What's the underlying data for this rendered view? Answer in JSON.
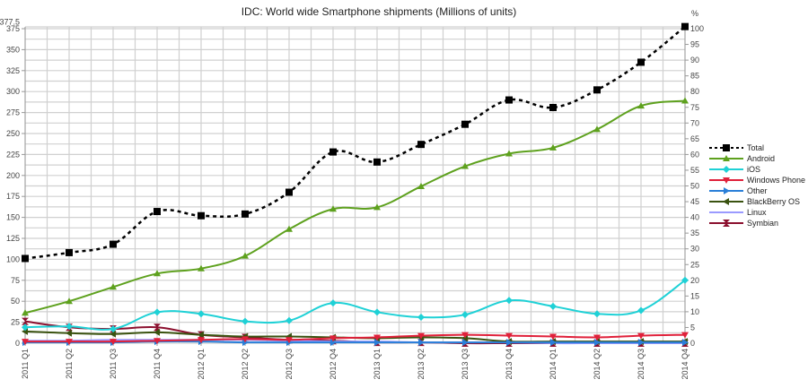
{
  "chart_data": {
    "type": "line",
    "title": "IDC: World wide Smartphone shipments (Millions of units)",
    "xlabel": "",
    "ylabel": "",
    "y2label": "%",
    "categories": [
      "2011 Q1",
      "2011 Q2",
      "2011 Q3",
      "2011 Q4",
      "2012 Q1",
      "2012 Q2",
      "2012 Q3",
      "2012 Q4",
      "2013 Q1",
      "2013 Q2",
      "2013 Q3",
      "2013 Q4",
      "2014 Q1",
      "2014 Q2",
      "2014 Q3",
      "2014 Q4"
    ],
    "ylim": [
      0,
      377.5
    ],
    "y_ticks": [
      0,
      25,
      50,
      75,
      100,
      125,
      150,
      175,
      200,
      225,
      250,
      275,
      300,
      325,
      350,
      375,
      377.5
    ],
    "y2lim": [
      0,
      100
    ],
    "y2_ticks": [
      0,
      5,
      10,
      15,
      20,
      25,
      30,
      35,
      40,
      45,
      50,
      55,
      60,
      65,
      70,
      75,
      80,
      85,
      90,
      95,
      100
    ],
    "grid": true,
    "legend_position": "right",
    "series": [
      {
        "name": "Total",
        "color": "#000000",
        "marker": "square",
        "dashed": true,
        "values": [
          101,
          108,
          118,
          157,
          152,
          154,
          180,
          228,
          216,
          237,
          261,
          290,
          281,
          302,
          335,
          377.5
        ]
      },
      {
        "name": "Android",
        "color": "#5ea11e",
        "marker": "triangle-up",
        "dashed": false,
        "values": [
          36,
          50,
          67,
          83,
          89,
          104,
          136,
          160,
          162,
          187,
          211,
          226,
          233,
          255,
          283,
          289
        ]
      },
      {
        "name": "iOS",
        "color": "#1fd1d6",
        "marker": "diamond",
        "dashed": false,
        "values": [
          19,
          20,
          17,
          37,
          35,
          26,
          27,
          48,
          37,
          31,
          34,
          51,
          44,
          35,
          39,
          75
        ]
      },
      {
        "name": "Windows Phone",
        "color": "#e0203a",
        "marker": "triangle-down",
        "dashed": false,
        "values": [
          2,
          2,
          2,
          3,
          4,
          5,
          4,
          6,
          7,
          9,
          10,
          9,
          8,
          7,
          9,
          10
        ]
      },
      {
        "name": "Other",
        "color": "#2a7fd8",
        "marker": "triangle-right",
        "dashed": false,
        "values": [
          1,
          1,
          1,
          2,
          2,
          1,
          1,
          1,
          1,
          1,
          1,
          1,
          1,
          1,
          1,
          1
        ]
      },
      {
        "name": "BlackBerry OS",
        "color": "#3a5210",
        "marker": "triangle-left",
        "dashed": false,
        "values": [
          14,
          12,
          11,
          13,
          10,
          8,
          8,
          7,
          6,
          7,
          6,
          2,
          2,
          2,
          2,
          2
        ]
      },
      {
        "name": "Linux",
        "color": "#9a9aff",
        "marker": "bowtie",
        "dashed": false,
        "values": [
          3,
          3,
          4,
          4,
          4,
          4,
          3,
          2,
          2,
          1,
          1,
          1,
          0,
          0,
          0,
          0
        ]
      },
      {
        "name": "Symbian",
        "color": "#8b0f2e",
        "marker": "hourglass",
        "dashed": false,
        "values": [
          26,
          19,
          17,
          19,
          10,
          7,
          4,
          3,
          1,
          1,
          0,
          0,
          0,
          0,
          0,
          0
        ]
      }
    ]
  }
}
